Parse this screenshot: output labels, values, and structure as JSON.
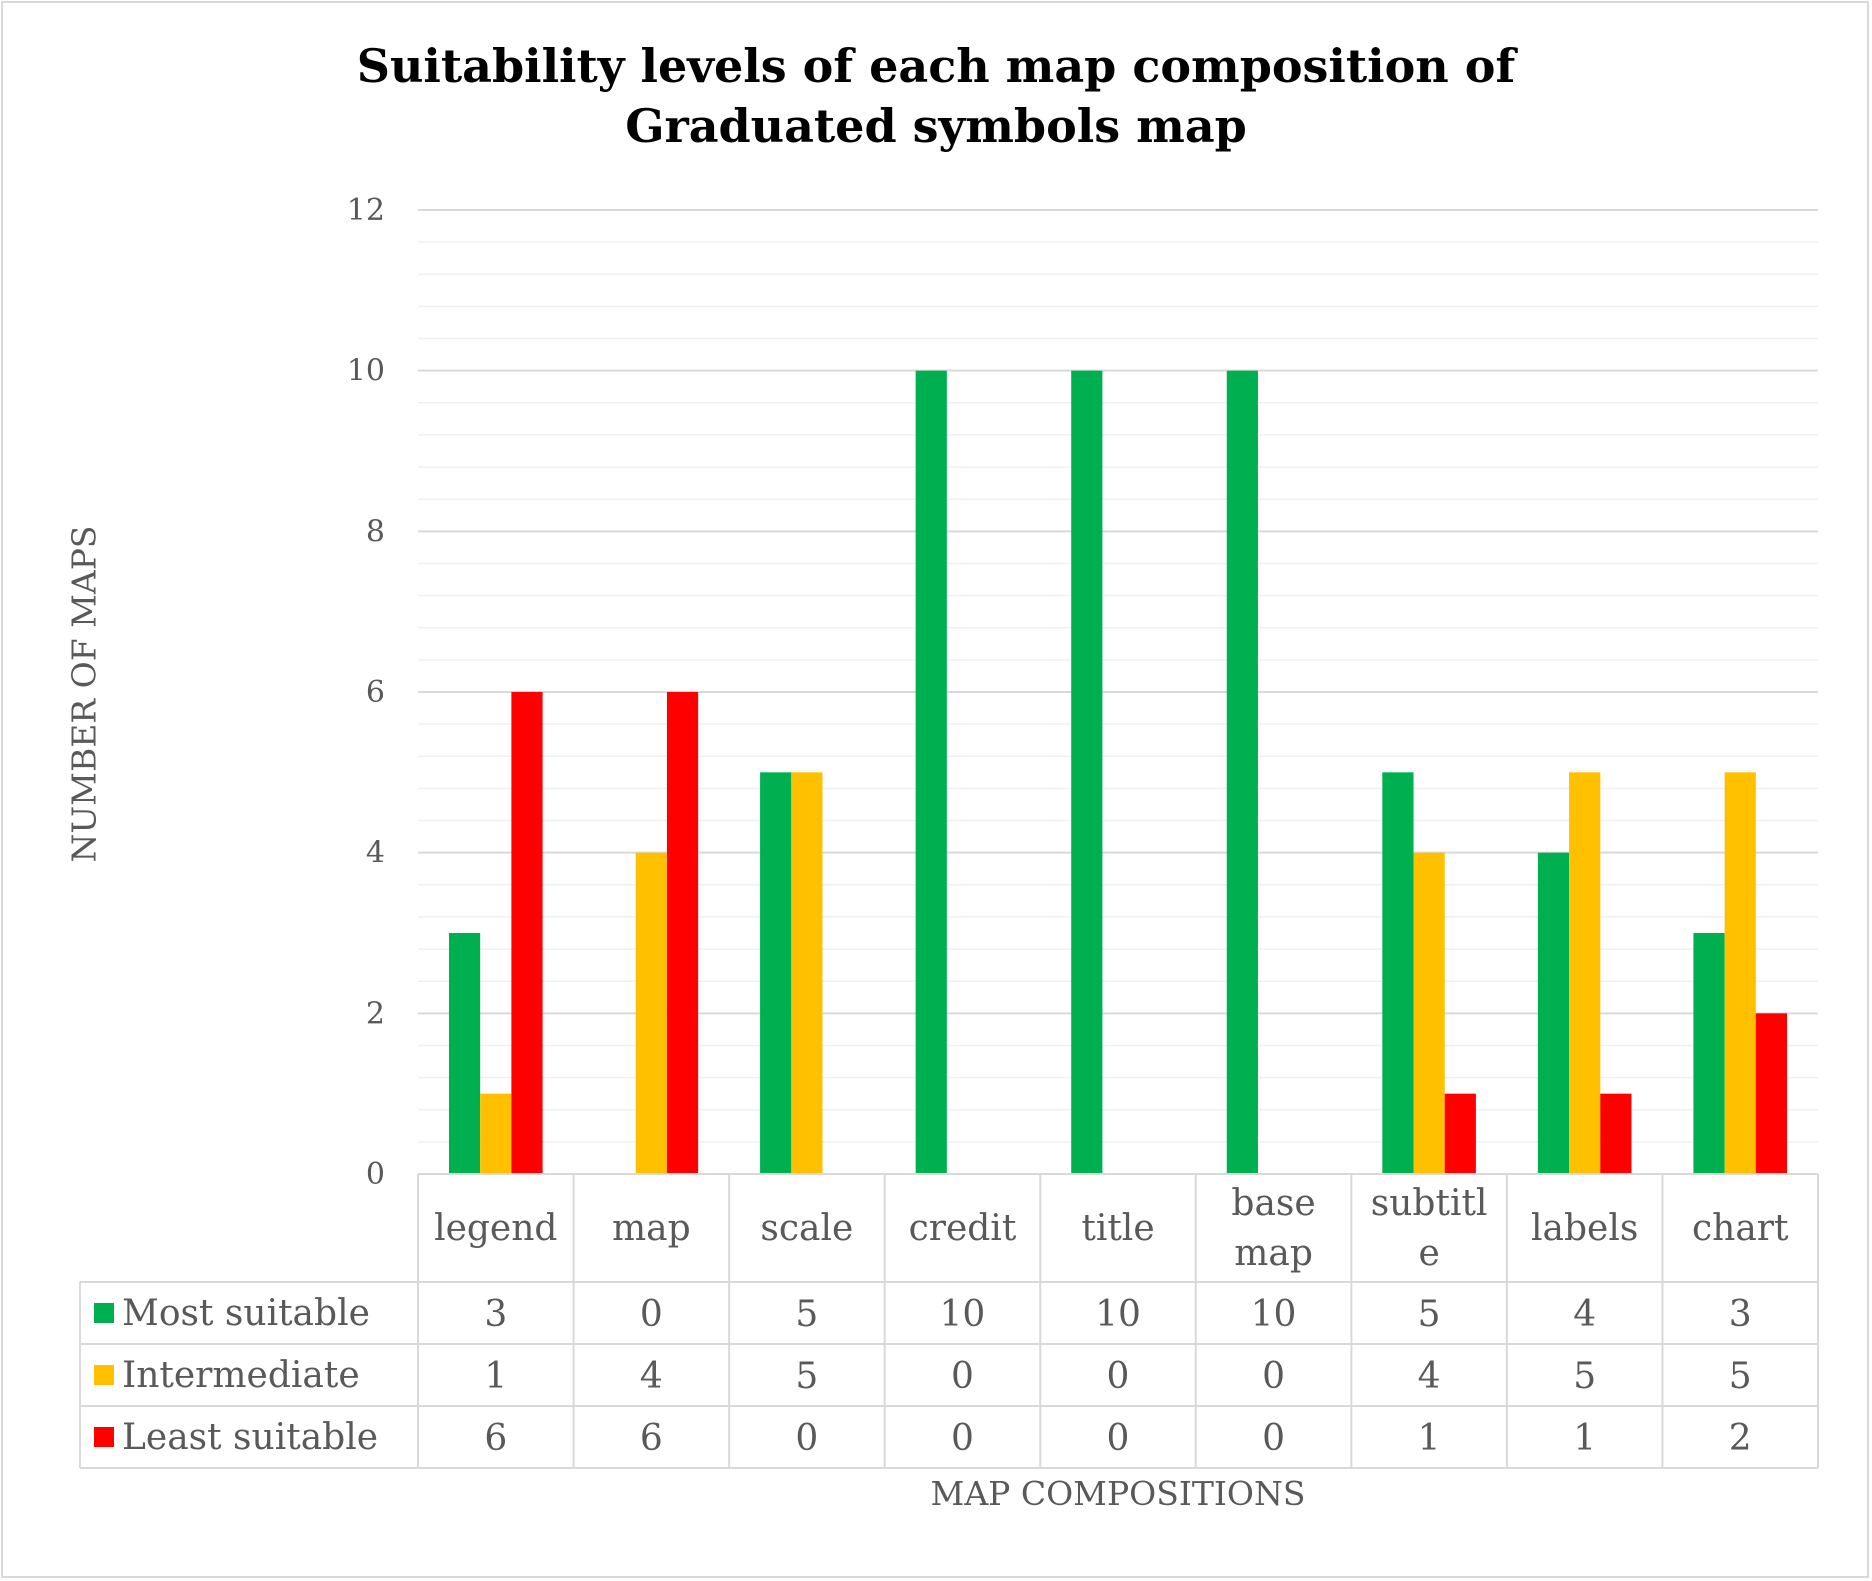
{
  "chart_data": {
    "type": "bar",
    "title_lines": [
      "Suitability levels of each map composition of",
      "Graduated symbols map"
    ],
    "xlabel": "MAP COMPOSITIONS",
    "ylabel": "NUMBER OF MAPS",
    "ylim": [
      0,
      12
    ],
    "y_ticks": [
      "0",
      "2",
      "4",
      "6",
      "8",
      "10",
      "12"
    ],
    "grid": true,
    "legend_placement": "data-table-left",
    "categories": [
      [
        "legend"
      ],
      [
        "map"
      ],
      [
        "scale"
      ],
      [
        "credit"
      ],
      [
        "title"
      ],
      [
        "base",
        "map"
      ],
      [
        "subtitl",
        "e"
      ],
      [
        "labels"
      ],
      [
        "chart"
      ]
    ],
    "series": [
      {
        "name": "Most suitable",
        "color": "#00b050",
        "values": [
          3,
          0,
          5,
          10,
          10,
          10,
          5,
          4,
          3
        ]
      },
      {
        "name": "Intermediate",
        "color": "#ffc000",
        "values": [
          1,
          4,
          5,
          0,
          0,
          0,
          4,
          5,
          5
        ]
      },
      {
        "name": "Least suitable",
        "color": "#ff0000",
        "values": [
          6,
          6,
          0,
          0,
          0,
          0,
          1,
          1,
          2
        ]
      }
    ]
  }
}
